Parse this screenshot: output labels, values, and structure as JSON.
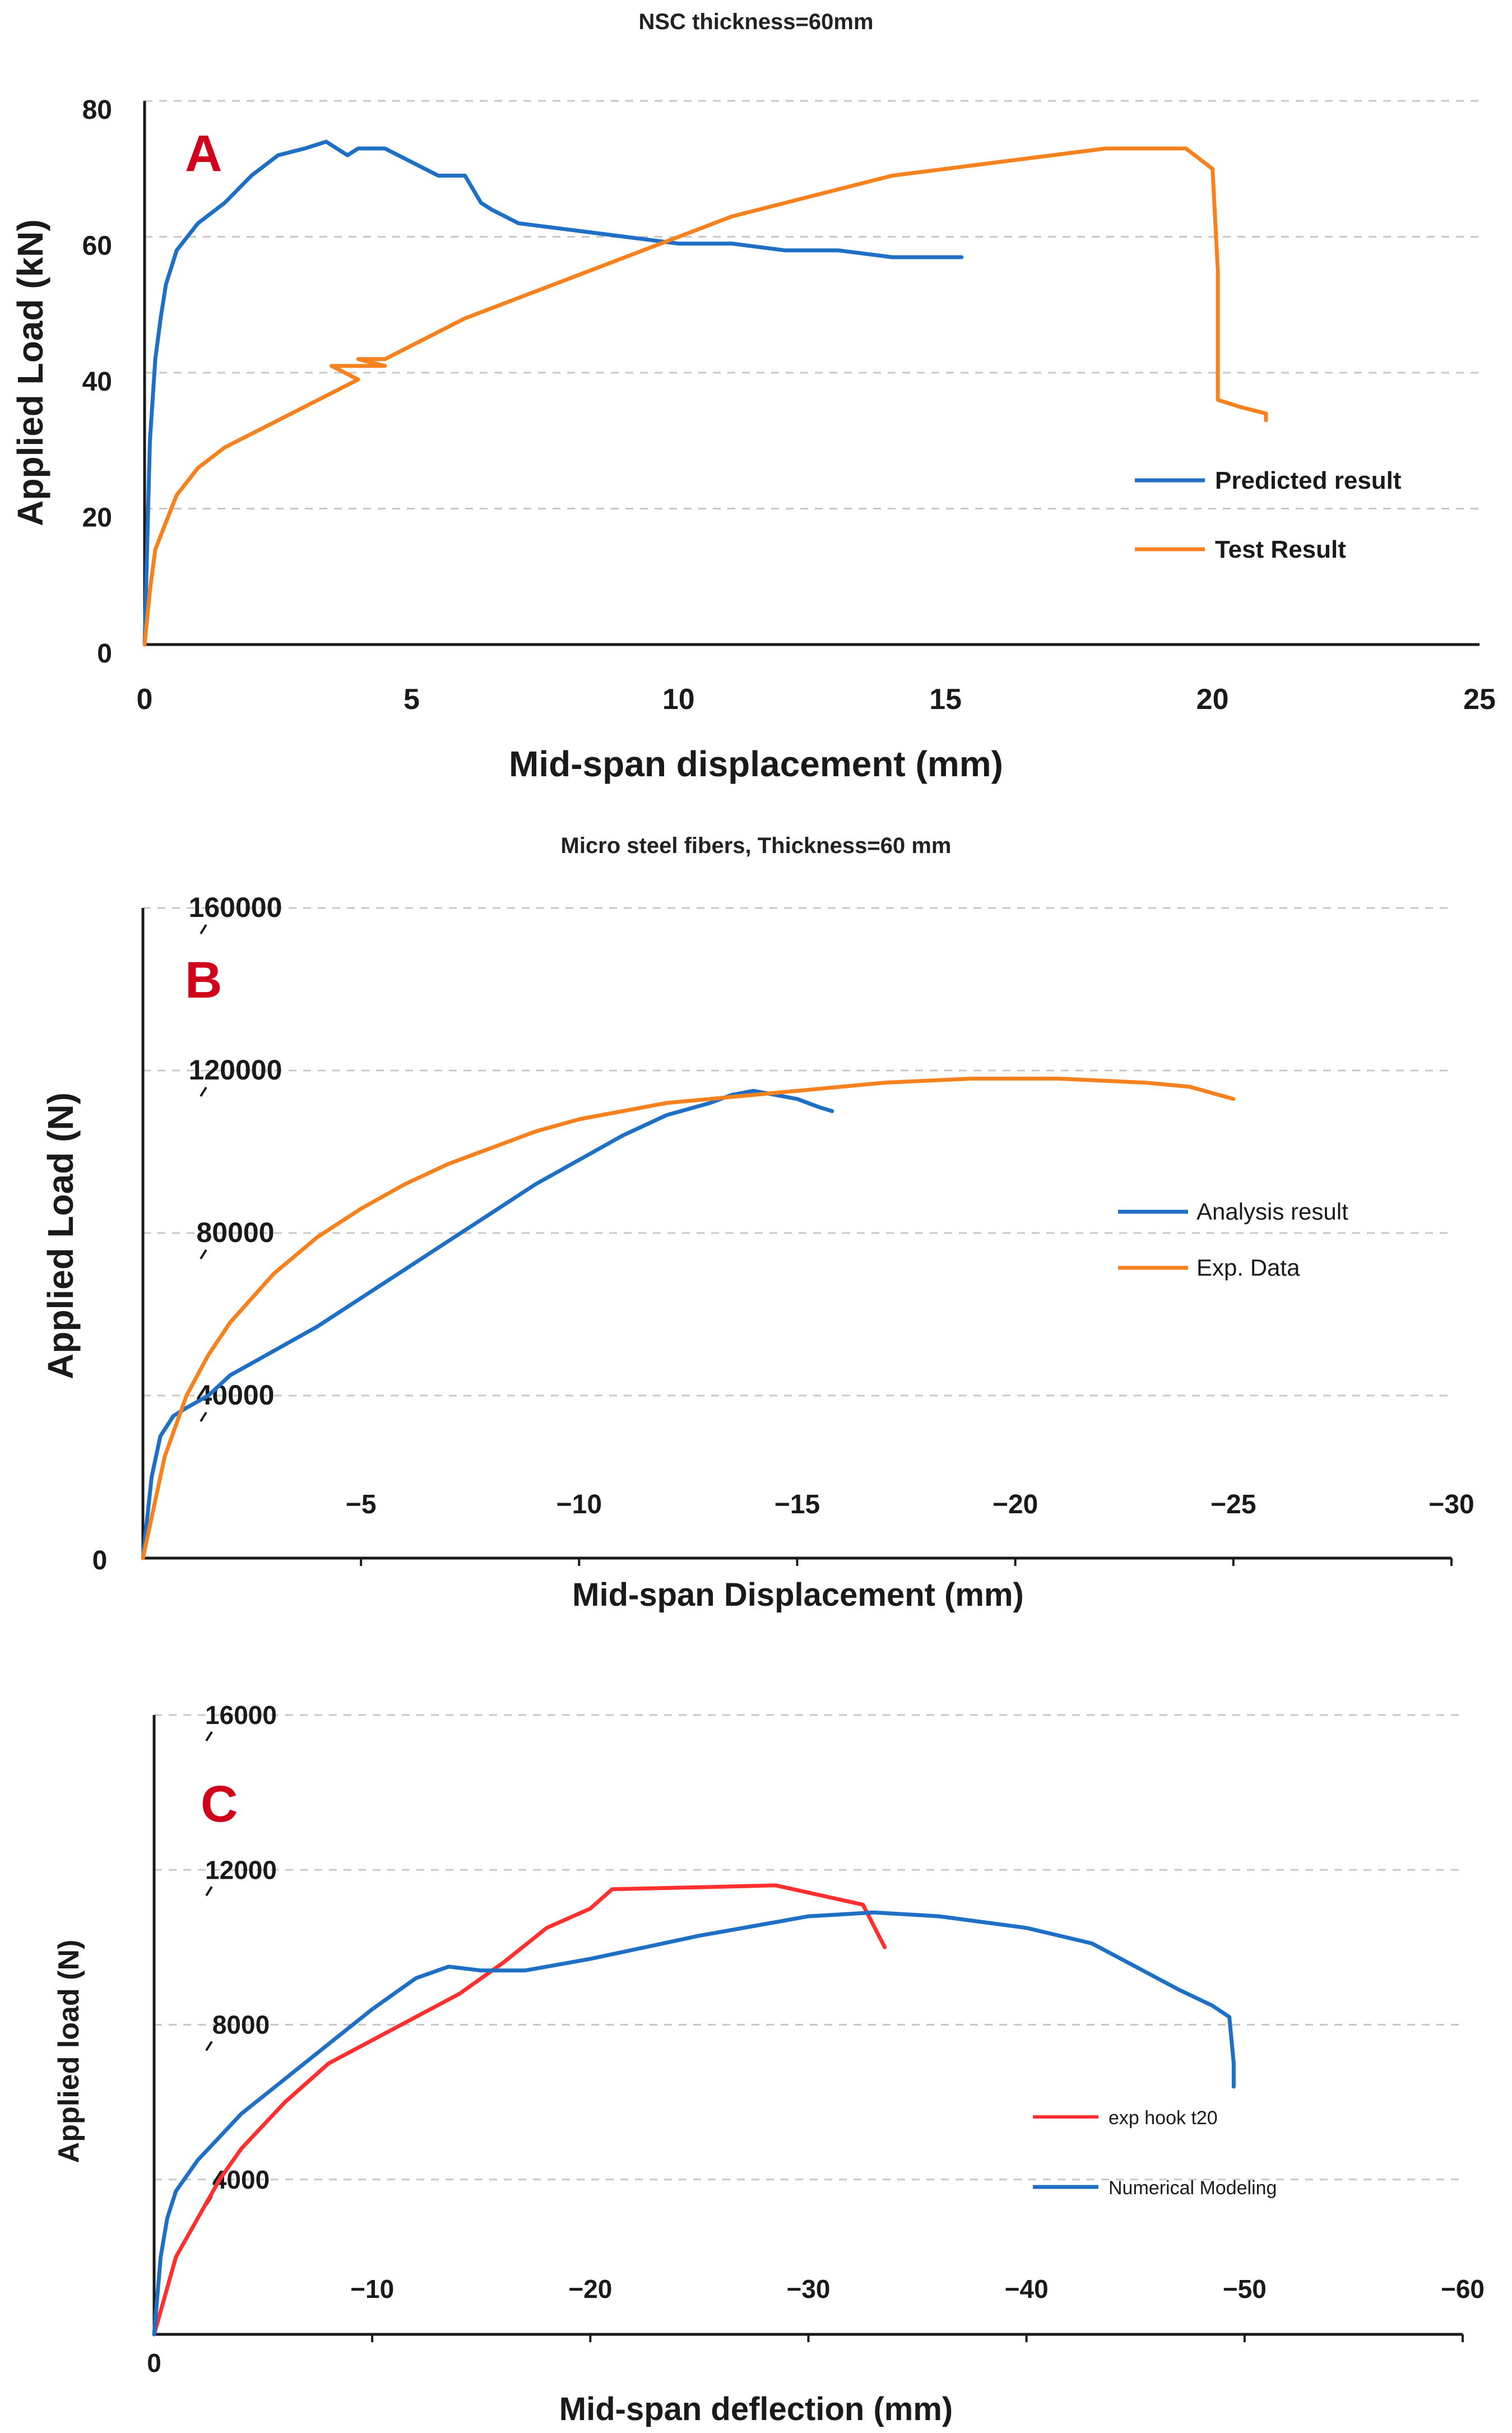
{
  "chart_data": [
    {
      "id": "A",
      "type": "line",
      "panel_label": "A",
      "title": "NSC thickness=60mm",
      "xlabel": "Mid-span displacement (mm)",
      "ylabel": "Applied Load (kN)",
      "xlim": [
        0,
        25
      ],
      "ylim": [
        0,
        80
      ],
      "xticks": [
        0,
        5,
        10,
        15,
        20,
        25
      ],
      "yticks": [
        0,
        20,
        40,
        60,
        80
      ],
      "xtick_labels": [
        "0",
        "5",
        "10",
        "15",
        "20",
        "25"
      ],
      "ytick_labels": [
        "0",
        "20",
        "40",
        "60",
        "80"
      ],
      "grid": true,
      "legend_position": "right",
      "label_color": "#d0021b",
      "series": [
        {
          "name": "Predicted result",
          "color": "#1f6fc5",
          "x": [
            0,
            0.1,
            0.2,
            0.3,
            0.4,
            0.6,
            0.8,
            1.0,
            1.5,
            2.0,
            2.5,
            3.0,
            3.4,
            3.6,
            3.8,
            4.0,
            4.5,
            5.0,
            5.5,
            6.0,
            6.3,
            6.5,
            7.0,
            8.0,
            9.0,
            10.0,
            11.0,
            12.0,
            13.0,
            14.0,
            15.0,
            15.3
          ],
          "y": [
            0,
            30,
            42,
            48,
            53,
            58,
            60,
            62,
            65,
            69,
            72,
            73,
            74,
            73,
            72,
            73,
            73,
            71,
            69,
            69,
            65,
            64,
            62,
            61,
            60,
            59,
            59,
            58,
            58,
            57,
            57,
            57
          ]
        },
        {
          "name": "Test Result",
          "color": "#f5821f",
          "x": [
            0,
            0.1,
            0.2,
            0.4,
            0.6,
            1.0,
            1.5,
            2.0,
            2.5,
            3.0,
            3.5,
            4.0,
            3.5,
            4.5,
            4.0,
            4.5,
            5.0,
            6.0,
            7.0,
            8.0,
            9.0,
            10.0,
            11.0,
            12.0,
            13.0,
            14.0,
            15.0,
            16.0,
            17.0,
            18.0,
            19.0,
            19.5,
            20.0,
            20.1,
            20.1,
            20.5,
            21.0,
            21.0
          ],
          "y": [
            0,
            8,
            14,
            18,
            22,
            26,
            29,
            31,
            33,
            35,
            37,
            39,
            41,
            41,
            42,
            42,
            44,
            48,
            51,
            54,
            57,
            60,
            63,
            65,
            67,
            69,
            70,
            71,
            72,
            73,
            73,
            73,
            70,
            55,
            36,
            35,
            34,
            33
          ]
        }
      ]
    },
    {
      "id": "B",
      "type": "line",
      "panel_label": "B",
      "title": "Micro steel fibers, Thickness=60 mm",
      "xlabel": "Mid-span Displacement (mm)",
      "ylabel": "Applied Load (N)",
      "xlim": [
        0,
        -30
      ],
      "ylim": [
        0,
        160000
      ],
      "xticks": [
        -5,
        -10,
        -15,
        -20,
        -25,
        -30
      ],
      "yticks": [
        0,
        40000,
        80000,
        120000,
        160000
      ],
      "xtick_labels": [
        "−5",
        "−10",
        "−15",
        "−20",
        "−25",
        "−30"
      ],
      "ytick_labels": [
        "0",
        "40000",
        "80000",
        "120000",
        "160000"
      ],
      "origin_label": "0",
      "grid": true,
      "legend_position": "right",
      "label_color": "#d0021b",
      "series": [
        {
          "name": "Analysis result",
          "color": "#1f6fc5",
          "x": [
            0,
            -0.2,
            -0.4,
            -0.7,
            -1.0,
            -1.5,
            -2.0,
            -3.0,
            -4.0,
            -5.0,
            -6.0,
            -7.0,
            -8.0,
            -9.0,
            -10.0,
            -11.0,
            -12.0,
            -13.0,
            -13.5,
            -14.0,
            -14.5,
            -15.0,
            -15.5,
            -15.8
          ],
          "y": [
            0,
            20000,
            30000,
            35000,
            37000,
            40000,
            45000,
            51000,
            57000,
            64000,
            71000,
            78000,
            85000,
            92000,
            98000,
            104000,
            109000,
            112000,
            114000,
            115000,
            114000,
            113000,
            111000,
            110000
          ]
        },
        {
          "name": "Exp. Data",
          "color": "#f5821f",
          "x": [
            0,
            -0.5,
            -1.0,
            -1.5,
            -2.0,
            -3.0,
            -4.0,
            -5.0,
            -6.0,
            -7.0,
            -8.0,
            -9.0,
            -10.0,
            -11.0,
            -12.0,
            -13.0,
            -14.0,
            -15.0,
            -16.0,
            -17.0,
            -18.0,
            -19.0,
            -20.0,
            -21.0,
            -22.0,
            -23.0,
            -24.0,
            -25.0
          ],
          "y": [
            0,
            25000,
            40000,
            50000,
            58000,
            70000,
            79000,
            86000,
            92000,
            97000,
            101000,
            105000,
            108000,
            110000,
            112000,
            113000,
            114000,
            115000,
            116000,
            117000,
            117500,
            118000,
            118000,
            118000,
            117500,
            117000,
            116000,
            113000
          ]
        }
      ]
    },
    {
      "id": "C",
      "type": "line",
      "panel_label": "C",
      "title": "",
      "xlabel": "Mid-span deflection (mm)",
      "ylabel": "Applied load (N)",
      "xlim": [
        0,
        -60
      ],
      "ylim": [
        0,
        16000
      ],
      "xticks": [
        -10,
        -20,
        -30,
        -40,
        -50,
        -60
      ],
      "yticks": [
        0,
        4000,
        8000,
        12000,
        16000
      ],
      "xtick_labels": [
        "−10",
        "−20",
        "−30",
        "−40",
        "−50",
        "−60"
      ],
      "ytick_labels": [
        "0",
        "4000",
        "8000",
        "12000",
        "16000"
      ],
      "origin_label": "0",
      "grid": true,
      "legend_position": "right",
      "label_color": "#d0021b",
      "series": [
        {
          "name": "exp hook t20",
          "color": "#ff3030",
          "x": [
            0,
            -1.0,
            -2.0,
            -3.0,
            -4.0,
            -6.0,
            -8.0,
            -10.0,
            -12.0,
            -14.0,
            -16.0,
            -18.0,
            -20.0,
            -21.0,
            -25.0,
            -28.5,
            -32.5,
            -33.5
          ],
          "y": [
            0,
            2000,
            3000,
            4000,
            4800,
            6000,
            7000,
            7600,
            8200,
            8800,
            9600,
            10500,
            11000,
            11500,
            11550,
            11600,
            11100,
            10000
          ]
        },
        {
          "name": "Numerical Modeling",
          "color": "#1f6fc5",
          "x": [
            0,
            -0.3,
            -0.6,
            -1.0,
            -2.0,
            -3.0,
            -4.0,
            -6.0,
            -8.0,
            -10.0,
            -12.0,
            -13.5,
            -15.0,
            -17.0,
            -20.0,
            -25.0,
            -30.0,
            -33.0,
            -36.0,
            -40.0,
            -43.0,
            -45.0,
            -47.0,
            -48.5,
            -49.3,
            -49.5,
            -49.5
          ],
          "y": [
            0,
            2000,
            3000,
            3700,
            4500,
            5100,
            5700,
            6600,
            7500,
            8400,
            9200,
            9500,
            9400,
            9400,
            9700,
            10300,
            10800,
            10900,
            10800,
            10500,
            10100,
            9500,
            8900,
            8500,
            8200,
            7000,
            6400
          ]
        }
      ]
    }
  ]
}
